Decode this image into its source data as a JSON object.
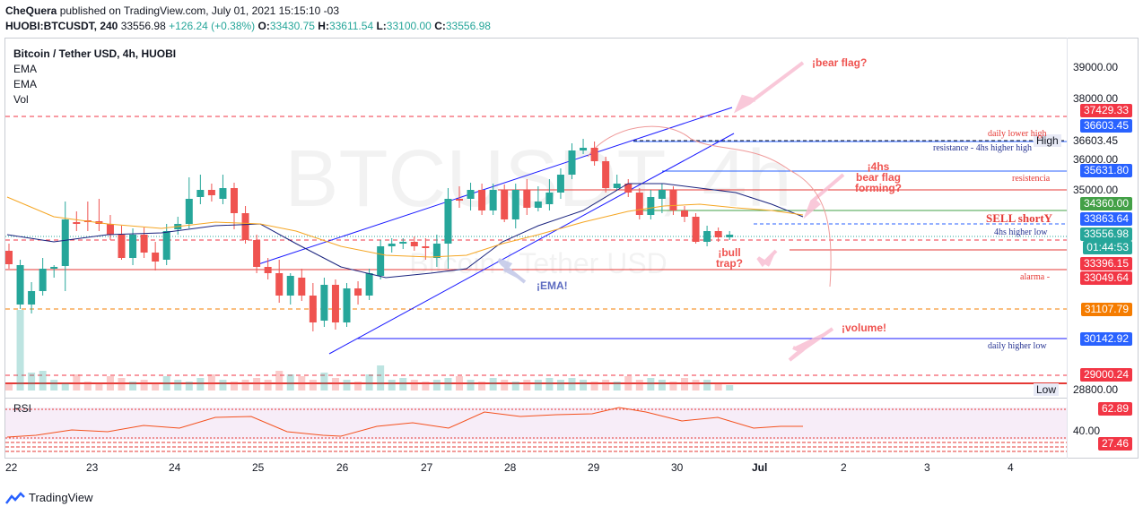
{
  "header": {
    "author": "CheQuera",
    "published": " published on TradingView.com, July 01, 2021 15:15:10 -03",
    "symbol_line": "HUOBI:BTCUSDT, 240",
    "last": "33556.98",
    "change": "+126.24 (+0.38%)",
    "o_label": "O:",
    "o": "33430.75",
    "h_label": "H:",
    "h": "33611.54",
    "l_label": "L:",
    "l": "33100.00",
    "c_label": "C:",
    "c": "33556.98"
  },
  "legend": {
    "title": "Bitcoin / Tether USD, 4h, HUOBI",
    "ema1": "EMA",
    "ema2": "EMA",
    "vol": "Vol",
    "rsi": "RSI"
  },
  "watermark": {
    "main": "BTCUSDT, 4h",
    "sub": "Bitcoin / Tether USD"
  },
  "price_ticks": [
    "39000.00",
    "38000.00",
    "36000.00",
    "35000.00",
    "40.00"
  ],
  "price_labels": [
    {
      "text": "37429.33",
      "color": "#f23645"
    },
    {
      "text": "36603.45",
      "color": "#2962ff"
    },
    {
      "text": "35631.80",
      "color": "#2962ff"
    },
    {
      "text": "34360.00",
      "color": "#43a047"
    },
    {
      "text": "33863.64",
      "color": "#2962ff"
    },
    {
      "text": "33556.98",
      "color": "#26a69a"
    },
    {
      "text": "01:44:53",
      "color": "#26a69a"
    },
    {
      "text": "33396.15",
      "color": "#f23645"
    },
    {
      "text": "33049.64",
      "color": "#f23645"
    },
    {
      "text": "31107.79",
      "color": "#f57c00"
    },
    {
      "text": "30142.92",
      "color": "#2962ff"
    },
    {
      "text": "29000.24",
      "color": "#f23645"
    },
    {
      "text": "62.89",
      "color": "#f23645"
    },
    {
      "text": "27.46",
      "color": "#f23645"
    }
  ],
  "side_tags": {
    "high_label": "High",
    "high_value": "36603.45",
    "low_label": "Low",
    "low_value": "28800.00"
  },
  "x_ticks": [
    "22",
    "23",
    "24",
    "25",
    "26",
    "27",
    "28",
    "29",
    "30",
    "Jul",
    "2",
    "3",
    "4"
  ],
  "annotations": {
    "bear_flag": "¡bear flag?",
    "bear_flag_4h_1": "¡4hs",
    "bear_flag_4h_2": "bear flag",
    "bear_flag_4h_3": "forming?",
    "bull_trap_1": "¡bull",
    "bull_trap_2": "trap?",
    "volume": "¡volume!",
    "ema": "¡EMA!",
    "sell": "SELL shortY"
  },
  "line_labels": {
    "daily_lower_high": "daily lower high",
    "resistance_4h": "resistance - 4hs higher high",
    "resistencia": "resistencia",
    "higher_low_4h": "4hs higher low",
    "alarma": "alarma -",
    "daily_higher_low": "daily higher low"
  },
  "footer": {
    "brand": "TradingView"
  },
  "colors": {
    "up": "#26a69a",
    "down": "#ef5350",
    "ema_fast": "#1a237e",
    "ema_slow": "#f5a623",
    "trend": "#1a1aff"
  }
}
